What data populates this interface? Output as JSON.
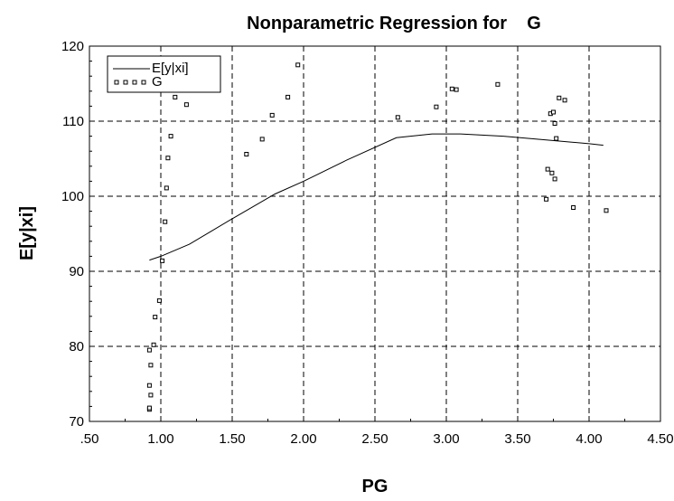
{
  "chart_data": {
    "type": "scatter",
    "title": "Nonparametric Regression for    G",
    "xlabel": "PG",
    "ylabel": "E[y|xi]",
    "xlim": [
      0.5,
      4.5
    ],
    "ylim": [
      70,
      120
    ],
    "grid": true,
    "legend_position": "top-left",
    "x_ticks": [
      ".50",
      "1.00",
      "1.50",
      "2.00",
      "2.50",
      "3.00",
      "3.50",
      "4.00",
      "4.50"
    ],
    "y_ticks": [
      "70",
      "80",
      "90",
      "100",
      "110",
      "120"
    ],
    "series": [
      {
        "name": "E[y|xi]",
        "kind": "line",
        "x": [
          0.92,
          1.0,
          1.2,
          1.5,
          1.8,
          2.0,
          2.3,
          2.65,
          2.9,
          3.0,
          3.1,
          3.4,
          3.7,
          4.0,
          4.1
        ],
        "y": [
          91.5,
          92.0,
          93.6,
          97.0,
          100.3,
          102.0,
          104.8,
          107.8,
          108.3,
          108.3,
          108.3,
          108.0,
          107.5,
          107.0,
          106.8
        ]
      },
      {
        "name": "G",
        "kind": "scatter",
        "x": [
          0.92,
          0.92,
          0.93,
          0.92,
          0.93,
          0.92,
          0.95,
          0.96,
          0.99,
          1.01,
          1.03,
          1.04,
          1.05,
          1.07,
          1.1,
          1.18,
          1.6,
          1.71,
          1.78,
          1.89,
          1.96,
          2.66,
          2.93,
          3.04,
          3.07,
          3.36,
          3.7,
          3.71,
          3.73,
          3.74,
          3.75,
          3.76,
          3.76,
          3.77,
          3.79,
          3.83,
          3.89,
          4.12
        ],
        "y": [
          71.6,
          71.8,
          73.5,
          74.8,
          77.5,
          79.5,
          80.2,
          83.9,
          86.1,
          91.4,
          96.6,
          101.1,
          105.1,
          108.0,
          113.2,
          112.2,
          105.6,
          107.6,
          110.8,
          113.2,
          117.5,
          110.5,
          111.9,
          114.3,
          114.2,
          114.9,
          99.6,
          103.6,
          111.0,
          103.1,
          111.2,
          109.7,
          102.3,
          107.7,
          113.1,
          112.8,
          98.5,
          98.1
        ]
      }
    ]
  }
}
